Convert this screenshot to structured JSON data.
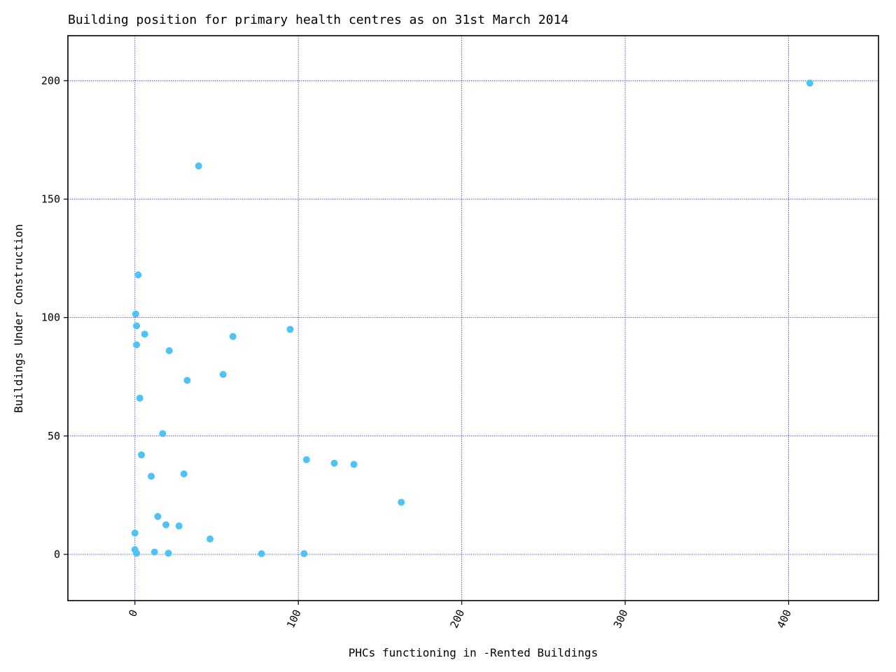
{
  "chart_data": {
    "type": "scatter",
    "title": "Building position for primary health centres as on 31st March 2014",
    "xlabel": "PHCs functioning in -Rented Buildings",
    "ylabel": "Buildings Under Construction",
    "xlim": [
      -41,
      455
    ],
    "ylim": [
      -19.5,
      219
    ],
    "xticks": [
      0,
      100,
      200,
      300,
      400
    ],
    "xtick_labels": [
      "0",
      "100",
      "200",
      "300",
      "400"
    ],
    "yticks": [
      0,
      50,
      100,
      150,
      200
    ],
    "ytick_labels": [
      "0",
      "50",
      "100",
      "150",
      "200"
    ],
    "grid": true,
    "grid_color": "#3333cc",
    "point_color": "#4fc3f7",
    "x": [
      413,
      39,
      2,
      0.5,
      1,
      6,
      60,
      95,
      1,
      21,
      54,
      32,
      3,
      17,
      4,
      105,
      122,
      134,
      10,
      30,
      163,
      14,
      19,
      27,
      0,
      46,
      0,
      1,
      12,
      20.5,
      77.5,
      103.5
    ],
    "y": [
      199,
      164,
      118,
      101.5,
      96.5,
      93,
      92,
      95,
      88.5,
      86,
      76,
      73.5,
      66,
      51,
      42,
      40,
      38.5,
      38,
      33,
      34,
      22,
      16,
      12.5,
      12,
      9,
      6.5,
      2,
      0.5,
      1,
      0.5,
      0.3,
      0.3
    ]
  }
}
